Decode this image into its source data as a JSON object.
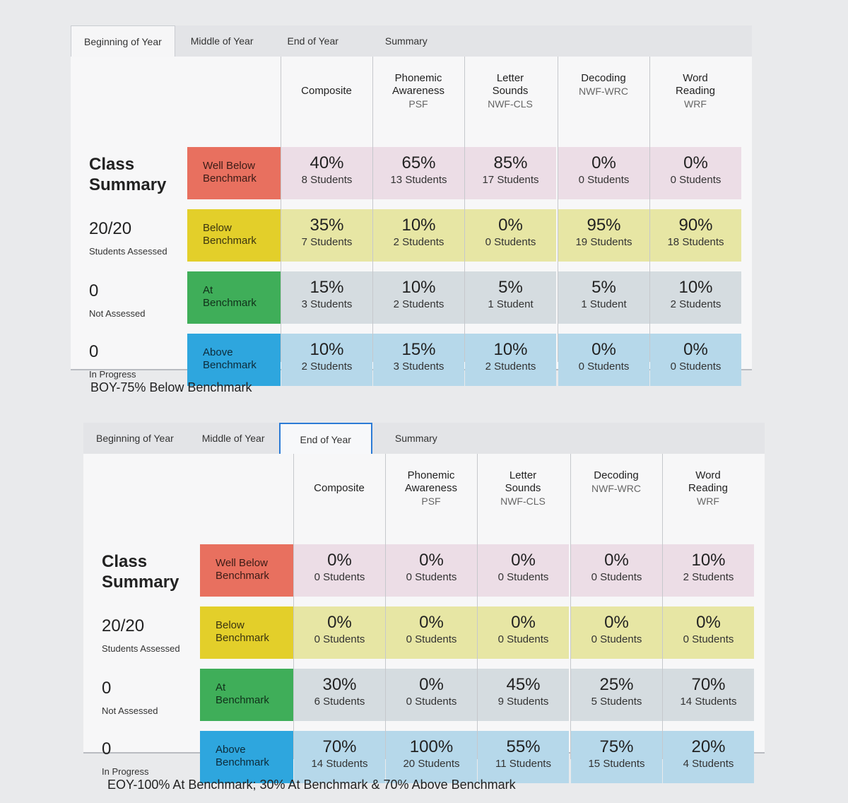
{
  "top": {
    "tabs": [
      "Beginning of Year",
      "Middle of Year",
      "End of Year",
      "Summary"
    ],
    "class_summary_title": "Class Summary",
    "assessed_value": "20/20",
    "assessed_label": "Students Assessed",
    "not_assessed_value": "0",
    "not_assessed_label": "Not Assessed",
    "in_progress_value": "0",
    "in_progress_label": "In Progress",
    "row_labels": [
      "Well Below Benchmark",
      "Below Benchmark",
      "At Benchmark",
      "Above Benchmark"
    ],
    "columns": [
      {
        "title": "Composite",
        "sub": ""
      },
      {
        "title": "Phonemic Awareness",
        "sub": "PSF"
      },
      {
        "title": "Letter Sounds",
        "sub": "NWF-CLS"
      },
      {
        "title": "Decoding",
        "sub": "NWF-WRC"
      },
      {
        "title": "Word Reading",
        "sub": "WRF"
      }
    ],
    "cells": [
      [
        [
          "40%",
          "8 Students"
        ],
        [
          "65%",
          "13 Students"
        ],
        [
          "85%",
          "17 Students"
        ],
        [
          "0%",
          "0 Students"
        ],
        [
          "0%",
          "0 Students"
        ]
      ],
      [
        [
          "35%",
          "7 Students"
        ],
        [
          "10%",
          "2 Students"
        ],
        [
          "0%",
          "0 Students"
        ],
        [
          "95%",
          "19 Students"
        ],
        [
          "90%",
          "18 Students"
        ]
      ],
      [
        [
          "15%",
          "3 Students"
        ],
        [
          "10%",
          "2 Students"
        ],
        [
          "5%",
          "1 Student"
        ],
        [
          "5%",
          "1 Student"
        ],
        [
          "10%",
          "2 Students"
        ]
      ],
      [
        [
          "10%",
          "2 Students"
        ],
        [
          "15%",
          "3 Students"
        ],
        [
          "10%",
          "2 Students"
        ],
        [
          "0%",
          "0 Students"
        ],
        [
          "0%",
          "0 Students"
        ]
      ]
    ],
    "caption": "BOY-75% Below Benchmark"
  },
  "bottom": {
    "tabs": [
      "Beginning of Year",
      "Middle of Year",
      "End of Year",
      "Summary"
    ],
    "class_summary_title": "Class Summary",
    "assessed_value": "20/20",
    "assessed_label": "Students Assessed",
    "not_assessed_value": "0",
    "not_assessed_label": "Not Assessed",
    "in_progress_value": "0",
    "in_progress_label": "In Progress",
    "row_labels": [
      "Well Below Benchmark",
      "Below Benchmark",
      "At Benchmark",
      "Above Benchmark"
    ],
    "columns": [
      {
        "title": "Composite",
        "sub": ""
      },
      {
        "title": "Phonemic Awareness",
        "sub": "PSF"
      },
      {
        "title": "Letter Sounds",
        "sub": "NWF-CLS"
      },
      {
        "title": "Decoding",
        "sub": "NWF-WRC"
      },
      {
        "title": "Word Reading",
        "sub": "WRF"
      }
    ],
    "cells": [
      [
        [
          "0%",
          "0 Students"
        ],
        [
          "0%",
          "0 Students"
        ],
        [
          "0%",
          "0 Students"
        ],
        [
          "0%",
          "0 Students"
        ],
        [
          "10%",
          "2 Students"
        ]
      ],
      [
        [
          "0%",
          "0 Students"
        ],
        [
          "0%",
          "0 Students"
        ],
        [
          "0%",
          "0 Students"
        ],
        [
          "0%",
          "0 Students"
        ],
        [
          "0%",
          "0 Students"
        ]
      ],
      [
        [
          "30%",
          "6 Students"
        ],
        [
          "0%",
          "0 Students"
        ],
        [
          "45%",
          "9 Students"
        ],
        [
          "25%",
          "5 Students"
        ],
        [
          "70%",
          "14 Students"
        ]
      ],
      [
        [
          "70%",
          "14 Students"
        ],
        [
          "100%",
          "20 Students"
        ],
        [
          "55%",
          "11 Students"
        ],
        [
          "75%",
          "15 Students"
        ],
        [
          "20%",
          "4 Students"
        ]
      ]
    ],
    "caption": "EOY-100% At Benchmark; 30% At Benchmark & 70% Above Benchmark"
  }
}
